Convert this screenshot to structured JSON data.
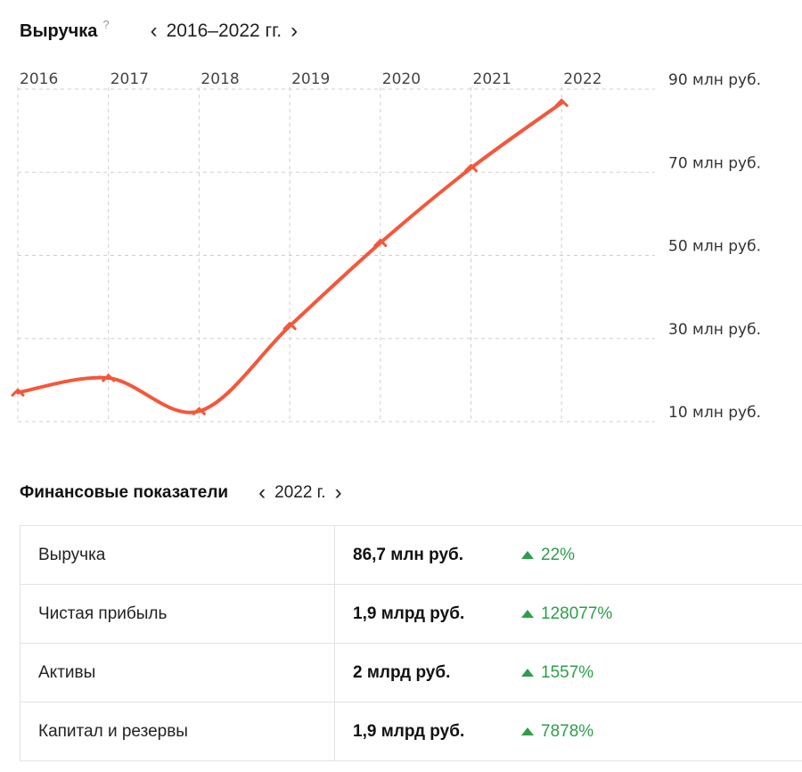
{
  "revenue_header": {
    "title": "Выручка",
    "help": "?",
    "period": "2016–2022 гг.",
    "prev_icon": "chevron-left-icon",
    "next_icon": "chevron-right-icon"
  },
  "chart_data": {
    "type": "line",
    "x": [
      "2016",
      "2017",
      "2018",
      "2019",
      "2020",
      "2021",
      "2022"
    ],
    "series": [
      {
        "values": [
          17,
          20.5,
          12.5,
          33,
          53,
          71,
          86.7
        ],
        "color": "#f4573a"
      }
    ],
    "ytick_values": [
      10,
      30,
      50,
      70,
      90
    ],
    "ytick_labels": [
      "10 млн руб.",
      "30 млн руб.",
      "50 млн руб.",
      "70 млн руб.",
      "90 млн руб."
    ],
    "ylim": [
      10,
      90
    ],
    "grid": true,
    "y_axis_side": "right",
    "x_axis_side": "top"
  },
  "financials_header": {
    "title": "Финансовые показатели",
    "period": "2022 г.",
    "prev_icon": "chevron-left-icon",
    "next_icon": "chevron-right-icon"
  },
  "financials": {
    "rows": [
      {
        "label": "Выручка",
        "value": "86,7 млн руб.",
        "change": "22%",
        "trend": "up"
      },
      {
        "label": "Чистая прибыль",
        "value": "1,9 млрд руб.",
        "change": "128077%",
        "trend": "up"
      },
      {
        "label": "Активы",
        "value": "2 млрд руб.",
        "change": "1557%",
        "trend": "up"
      },
      {
        "label": "Капитал и резервы",
        "value": "1,9 млрд руб.",
        "change": "7878%",
        "trend": "up"
      }
    ],
    "up_color": "#2e9e4a"
  }
}
